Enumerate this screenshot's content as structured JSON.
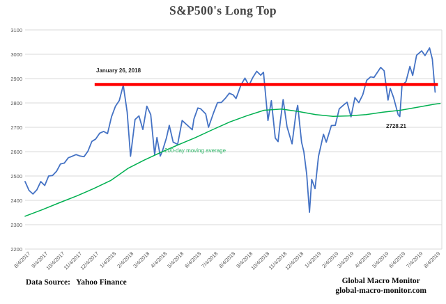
{
  "title": "S&P500's Long Top",
  "annotations": {
    "red_line_label": "January 26, 2018",
    "ma_label": "200-day moving average",
    "price_label": "2728.21"
  },
  "footer": {
    "source": "Data Source:   Yahoo Finance",
    "brand_line1": "Global Macro Monitor",
    "brand_line2": "global-macro-monitor.com"
  },
  "colors": {
    "price_line": "#4472C4",
    "ma_line": "#00B050",
    "resistance_line": "#FF0000",
    "grid": "#D9D9D9",
    "axis_text": "#595959",
    "annotation_text": "#262626",
    "ma_label_text": "#2EB567",
    "title_text": "#474747"
  },
  "chart_data": {
    "type": "line",
    "title": "S&P500's Long Top",
    "x_start": "8/4/2017",
    "x_end": "8/14/2019",
    "ylim": [
      2200,
      3100
    ],
    "y_ticks": [
      3100,
      3000,
      2900,
      2800,
      2700,
      2600,
      2500,
      2400,
      2300,
      2200
    ],
    "x_ticks": [
      "8/4/2017",
      "9/4/2017",
      "10/4/2017",
      "11/4/2017",
      "12/4/2017",
      "1/4/2018",
      "2/4/2018",
      "3/4/2018",
      "4/4/2018",
      "5/4/2018",
      "6/4/2018",
      "7/4/2018",
      "8/4/2018",
      "9/4/2018",
      "10/4/2018",
      "11/4/2018",
      "12/4/2018",
      "1/4/2019",
      "2/4/2019",
      "3/4/2019",
      "4/4/2019",
      "5/4/2019",
      "6/4/2019",
      "7/4/2019",
      "8/4/2019"
    ],
    "grid": "horizontal",
    "legend": "none",
    "hline": {
      "label": "January 26, 2018",
      "value": 2873,
      "from": "12/6/2017",
      "to": "8/10/2019"
    },
    "series": [
      {
        "name": "S&P 500",
        "points": [
          [
            "8/4/2017",
            2477
          ],
          [
            "8/11/2017",
            2441
          ],
          [
            "8/18/2017",
            2426
          ],
          [
            "8/25/2017",
            2443
          ],
          [
            "9/1/2017",
            2477
          ],
          [
            "9/8/2017",
            2461
          ],
          [
            "9/15/2017",
            2500
          ],
          [
            "9/22/2017",
            2502
          ],
          [
            "9/29/2017",
            2519
          ],
          [
            "10/6/2017",
            2549
          ],
          [
            "10/13/2017",
            2553
          ],
          [
            "10/20/2017",
            2575
          ],
          [
            "10/27/2017",
            2581
          ],
          [
            "11/3/2017",
            2588
          ],
          [
            "11/10/2017",
            2582
          ],
          [
            "11/17/2017",
            2579
          ],
          [
            "11/24/2017",
            2602
          ],
          [
            "12/1/2017",
            2642
          ],
          [
            "12/8/2017",
            2652
          ],
          [
            "12/15/2017",
            2676
          ],
          [
            "12/22/2017",
            2683
          ],
          [
            "12/29/2017",
            2674
          ],
          [
            "1/5/2018",
            2743
          ],
          [
            "1/12/2018",
            2786
          ],
          [
            "1/19/2018",
            2810
          ],
          [
            "1/26/2018",
            2873
          ],
          [
            "2/2/2018",
            2762
          ],
          [
            "2/8/2018",
            2581
          ],
          [
            "2/16/2018",
            2732
          ],
          [
            "2/23/2018",
            2747
          ],
          [
            "3/2/2018",
            2691
          ],
          [
            "3/9/2018",
            2787
          ],
          [
            "3/16/2018",
            2752
          ],
          [
            "3/23/2018",
            2588
          ],
          [
            "3/27/2018",
            2658
          ],
          [
            "4/2/2018",
            2582
          ],
          [
            "4/6/2018",
            2604
          ],
          [
            "4/13/2018",
            2656
          ],
          [
            "4/18/2018",
            2708
          ],
          [
            "4/25/2018",
            2639
          ],
          [
            "5/3/2018",
            2630
          ],
          [
            "5/11/2018",
            2728
          ],
          [
            "5/18/2018",
            2713
          ],
          [
            "5/29/2018",
            2690
          ],
          [
            "6/1/2018",
            2734
          ],
          [
            "6/8/2018",
            2779
          ],
          [
            "6/13/2018",
            2776
          ],
          [
            "6/22/2018",
            2755
          ],
          [
            "6/27/2018",
            2700
          ],
          [
            "7/6/2018",
            2760
          ],
          [
            "7/13/2018",
            2801
          ],
          [
            "7/20/2018",
            2802
          ],
          [
            "7/27/2018",
            2819
          ],
          [
            "8/3/2018",
            2840
          ],
          [
            "8/10/2018",
            2833
          ],
          [
            "8/15/2018",
            2818
          ],
          [
            "8/24/2018",
            2875
          ],
          [
            "8/31/2018",
            2902
          ],
          [
            "9/7/2018",
            2872
          ],
          [
            "9/14/2018",
            2905
          ],
          [
            "9/21/2018",
            2930
          ],
          [
            "9/28/2018",
            2914
          ],
          [
            "10/3/2018",
            2926
          ],
          [
            "10/11/2018",
            2728
          ],
          [
            "10/17/2018",
            2809
          ],
          [
            "10/24/2018",
            2656
          ],
          [
            "10/29/2018",
            2641
          ],
          [
            "11/2/2018",
            2723
          ],
          [
            "11/7/2018",
            2814
          ],
          [
            "11/14/2018",
            2702
          ],
          [
            "11/23/2018",
            2632
          ],
          [
            "11/30/2018",
            2760
          ],
          [
            "12/3/2018",
            2790
          ],
          [
            "12/10/2018",
            2638
          ],
          [
            "12/14/2018",
            2600
          ],
          [
            "12/19/2018",
            2507
          ],
          [
            "12/24/2018",
            2351
          ],
          [
            "12/28/2018",
            2486
          ],
          [
            "1/3/2019",
            2448
          ],
          [
            "1/9/2019",
            2580
          ],
          [
            "1/18/2019",
            2671
          ],
          [
            "1/23/2019",
            2639
          ],
          [
            "2/1/2019",
            2707
          ],
          [
            "2/8/2019",
            2708
          ],
          [
            "2/15/2019",
            2776
          ],
          [
            "2/25/2019",
            2796
          ],
          [
            "3/1/2019",
            2803
          ],
          [
            "3/8/2019",
            2743
          ],
          [
            "3/15/2019",
            2822
          ],
          [
            "3/22/2019",
            2801
          ],
          [
            "3/29/2019",
            2834
          ],
          [
            "4/5/2019",
            2893
          ],
          [
            "4/12/2019",
            2907
          ],
          [
            "4/18/2019",
            2905
          ],
          [
            "4/30/2019",
            2946
          ],
          [
            "5/6/2019",
            2932
          ],
          [
            "5/13/2019",
            2812
          ],
          [
            "5/17/2019",
            2860
          ],
          [
            "5/23/2019",
            2822
          ],
          [
            "5/31/2019",
            2752
          ],
          [
            "6/3/2019",
            2744
          ],
          [
            "6/7/2019",
            2873
          ],
          [
            "6/14/2019",
            2887
          ],
          [
            "6/21/2019",
            2950
          ],
          [
            "6/26/2019",
            2913
          ],
          [
            "7/3/2019",
            2996
          ],
          [
            "7/12/2019",
            3014
          ],
          [
            "7/18/2019",
            2995
          ],
          [
            "7/26/2019",
            3026
          ],
          [
            "7/31/2019",
            2980
          ],
          [
            "8/1/2019",
            2953
          ],
          [
            "8/5/2019",
            2845
          ]
        ]
      },
      {
        "name": "200-day moving average",
        "points": [
          [
            "8/4/2017",
            2335
          ],
          [
            "9/4/2017",
            2362
          ],
          [
            "10/4/2017",
            2390
          ],
          [
            "11/4/2017",
            2418
          ],
          [
            "12/4/2017",
            2448
          ],
          [
            "1/4/2018",
            2482
          ],
          [
            "2/4/2018",
            2532
          ],
          [
            "3/4/2018",
            2565
          ],
          [
            "4/4/2018",
            2598
          ],
          [
            "5/4/2018",
            2628
          ],
          [
            "6/4/2018",
            2658
          ],
          [
            "7/4/2018",
            2690
          ],
          [
            "8/4/2018",
            2722
          ],
          [
            "9/4/2018",
            2748
          ],
          [
            "10/4/2018",
            2770
          ],
          [
            "11/4/2018",
            2775
          ],
          [
            "12/4/2018",
            2765
          ],
          [
            "1/4/2019",
            2752
          ],
          [
            "2/4/2019",
            2745
          ],
          [
            "3/4/2019",
            2747
          ],
          [
            "4/4/2019",
            2752
          ],
          [
            "5/4/2019",
            2762
          ],
          [
            "6/4/2019",
            2770
          ],
          [
            "7/4/2019",
            2782
          ],
          [
            "8/4/2019",
            2795
          ],
          [
            "8/14/2019",
            2798
          ]
        ]
      }
    ]
  }
}
